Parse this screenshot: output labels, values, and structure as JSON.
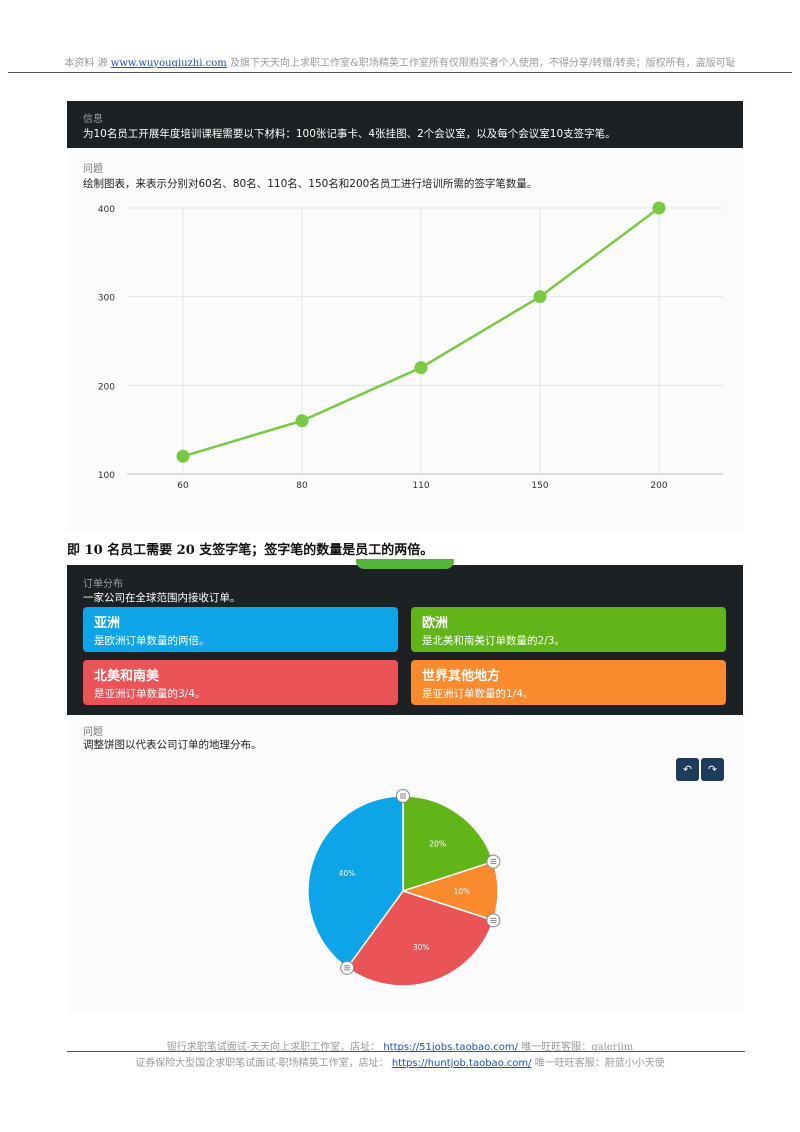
{
  "header": {
    "prefix": "本资料 源",
    "link": "www.wuyouqiuzhi.com",
    "suffix": "及旗下天天向上求职工作室&职场精英工作室所有仅限购买者个人使用，不得分享/转赠/转卖；版权所有，盗版可耻"
  },
  "info": {
    "label": "信息",
    "text": "为10名员工开展年度培训课程需要以下材料：100张记事卡、4张挂图、2个会议室，以及每个会议室10支签字笔。"
  },
  "question1": {
    "label": "问题",
    "text": "绘制图表，来表示分别对60名、80名、110名、150名和200名员工进行培训所需的签字笔数量。"
  },
  "chart_data": [
    {
      "type": "line",
      "categories": [
        "60",
        "80",
        "110",
        "150",
        "200"
      ],
      "values": [
        120,
        160,
        220,
        300,
        400
      ],
      "yticks": [
        "100",
        "200",
        "300",
        "400"
      ],
      "ylim": [
        100,
        400
      ],
      "grid": true,
      "color": "#7ac943"
    },
    {
      "type": "pie",
      "labels": [
        "20%",
        "10%",
        "30%",
        "40%"
      ],
      "values": [
        20,
        10,
        30,
        40
      ],
      "colors": [
        "#62b519",
        "#f98a2e",
        "#ea5457",
        "#0da4e8"
      ]
    }
  ],
  "note": "即 10 名员工需要 20 支签字笔；签字笔的数量是员工的两倍。",
  "orders": {
    "label": "订单分布",
    "text": "一家公司在全球范围内接收订单。",
    "cards": [
      {
        "title": "亚洲",
        "desc": "是欧洲订单数量的两倍。"
      },
      {
        "title": "欧洲",
        "desc": "是北美和南美订单数量的2/3。"
      },
      {
        "title": "北美和南美",
        "desc": "是亚洲订单数量的3/4。"
      },
      {
        "title": "世界其他地方",
        "desc": "是亚洲订单数量的1/4。"
      }
    ]
  },
  "question2": {
    "label": "问题",
    "text": "调整饼图以代表公司订单的地理分布。",
    "undo_icon": "undo-icon",
    "redo_icon": "redo-icon"
  },
  "footer": {
    "line1_prefix": "银行求职笔试面试-天天向上求职工作室，店址：",
    "line1_link": "https://51jobs.taobao.com/",
    "line1_suffix": "唯一旺旺客服：galerjim",
    "line2_prefix": "证券保险大型国企求职笔试面试-职场精英工作室，店址：",
    "line2_link": "https://huntjob.taobao.com/",
    "line2_suffix": "唯一旺旺客服：蔚蓝小小天使"
  }
}
